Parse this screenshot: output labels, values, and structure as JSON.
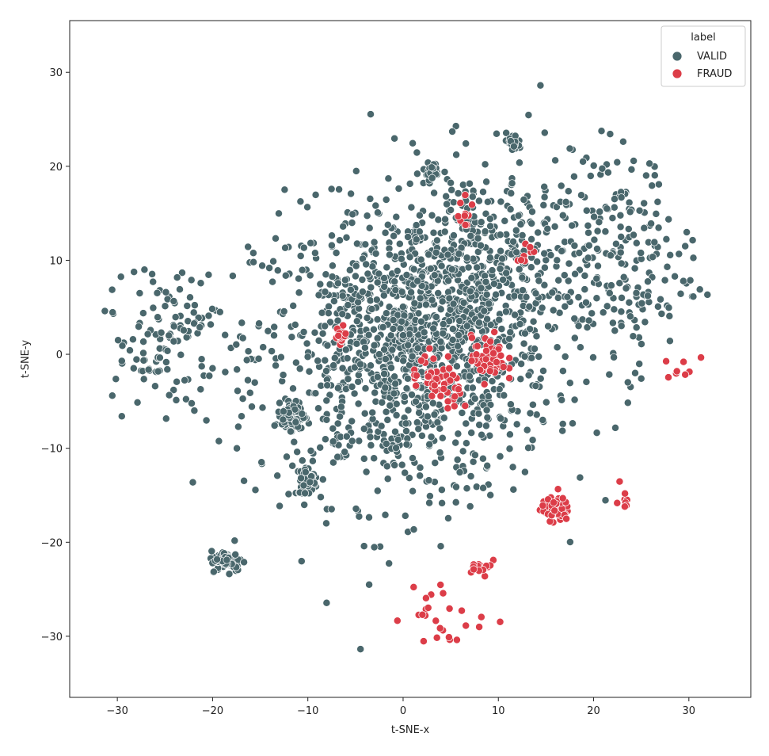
{
  "chart_data": {
    "type": "scatter",
    "title": "",
    "xlabel": "t-SNE-x",
    "ylabel": "t-SNE-y",
    "xlim": [
      -35,
      36.5
    ],
    "ylim": [
      -36.5,
      35.5
    ],
    "xticks": [
      -30,
      -20,
      -10,
      0,
      10,
      20,
      30
    ],
    "yticks": [
      -30,
      -20,
      -10,
      0,
      10,
      20,
      30
    ],
    "xtick_labels": [
      "−30",
      "−20",
      "−10",
      "0",
      "10",
      "20",
      "30"
    ],
    "ytick_labels": [
      "−30",
      "−20",
      "−10",
      "0",
      "10",
      "20",
      "30"
    ],
    "grid": false,
    "legend": {
      "title": "label",
      "placement": "top-right"
    },
    "series": [
      {
        "name": "VALID",
        "color": "#4a676c",
        "point_count_approx": 2400,
        "clusters": [
          {
            "center": [
              0,
              0
            ],
            "spread": [
              13,
              13
            ],
            "n": 1100
          },
          {
            "center": [
              8,
              8
            ],
            "spread": [
              10,
              10
            ],
            "n": 500
          },
          {
            "center": [
              -11.5,
              -6.5
            ],
            "spread": [
              1.0,
              1.2
            ],
            "n": 90
          },
          {
            "center": [
              -18.5,
              -22
            ],
            "spread": [
              1.4,
              0.9
            ],
            "n": 90
          },
          {
            "center": [
              -10,
              -13.5
            ],
            "spread": [
              0.8,
              1.3
            ],
            "n": 55
          },
          {
            "center": [
              0,
              2
            ],
            "spread": [
              0.5,
              1.0
            ],
            "n": 40
          },
          {
            "center": [
              3,
              19.5
            ],
            "spread": [
              0.6,
              0.8
            ],
            "n": 30
          },
          {
            "center": [
              11.5,
              22.5
            ],
            "spread": [
              0.8,
              0.8
            ],
            "n": 25
          },
          {
            "center": [
              -25,
              2
            ],
            "spread": [
              5,
              6
            ],
            "n": 120
          },
          {
            "center": [
              23,
              10
            ],
            "spread": [
              6,
              10
            ],
            "n": 180
          }
        ]
      },
      {
        "name": "FRAUD",
        "color": "#dc3d48",
        "point_count_approx": 330,
        "clusters": [
          {
            "center": [
              16,
              -16.5
            ],
            "spread": [
              1.2,
              1.0
            ],
            "n": 75
          },
          {
            "center": [
              9,
              -0.5
            ],
            "spread": [
              1.5,
              2.0
            ],
            "n": 55
          },
          {
            "center": [
              3,
              -2
            ],
            "spread": [
              2.0,
              2.0
            ],
            "n": 35
          },
          {
            "center": [
              5,
              -4
            ],
            "spread": [
              1.5,
              1.5
            ],
            "n": 20
          },
          {
            "center": [
              -6.5,
              2
            ],
            "spread": [
              0.5,
              0.8
            ],
            "n": 18
          },
          {
            "center": [
              8.5,
              -22.5
            ],
            "spread": [
              1.5,
              0.6
            ],
            "n": 14
          },
          {
            "center": [
              4,
              -28
            ],
            "spread": [
              4,
              3
            ],
            "n": 25
          },
          {
            "center": [
              7,
              15
            ],
            "spread": [
              1.5,
              1.5
            ],
            "n": 10
          },
          {
            "center": [
              13,
              11
            ],
            "spread": [
              1.0,
              1.0
            ],
            "n": 8
          },
          {
            "center": [
              23,
              -15
            ],
            "spread": [
              1.0,
              1.5
            ],
            "n": 8
          },
          {
            "center": [
              30,
              -2
            ],
            "spread": [
              2,
              1.5
            ],
            "n": 8
          }
        ]
      }
    ]
  }
}
